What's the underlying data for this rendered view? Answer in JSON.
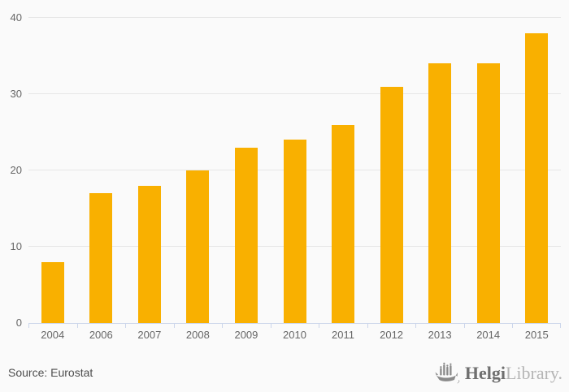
{
  "chart_data": {
    "type": "bar",
    "categories": [
      "2004",
      "2006",
      "2007",
      "2008",
      "2009",
      "2010",
      "2011",
      "2012",
      "2013",
      "2014",
      "2015"
    ],
    "values": [
      8,
      17,
      18,
      20,
      23,
      24,
      26,
      31,
      34,
      34,
      38
    ],
    "title": "",
    "xlabel": "",
    "ylabel": "",
    "ylim": [
      0,
      40
    ],
    "yticks": [
      0,
      10,
      20,
      30,
      40
    ],
    "grid": true,
    "legend": "none",
    "bar_color": "#f9b000"
  },
  "footer": {
    "source": "Source: Eurostat"
  },
  "logo": {
    "icon": "helgi-ship-icon",
    "brand_bold": "Helgi",
    "brand_light": "Library."
  },
  "colors": {
    "background": "#fafafa",
    "bar": "#f9b000",
    "gridline": "#e6e6e6",
    "axis_line": "#ccd6eb",
    "tick_label": "#666666",
    "source_text": "#4d4d4d",
    "logo_bold": "#6f6f6f",
    "logo_light": "#b5b5b5",
    "logo_icon": "#8a8a8a"
  }
}
